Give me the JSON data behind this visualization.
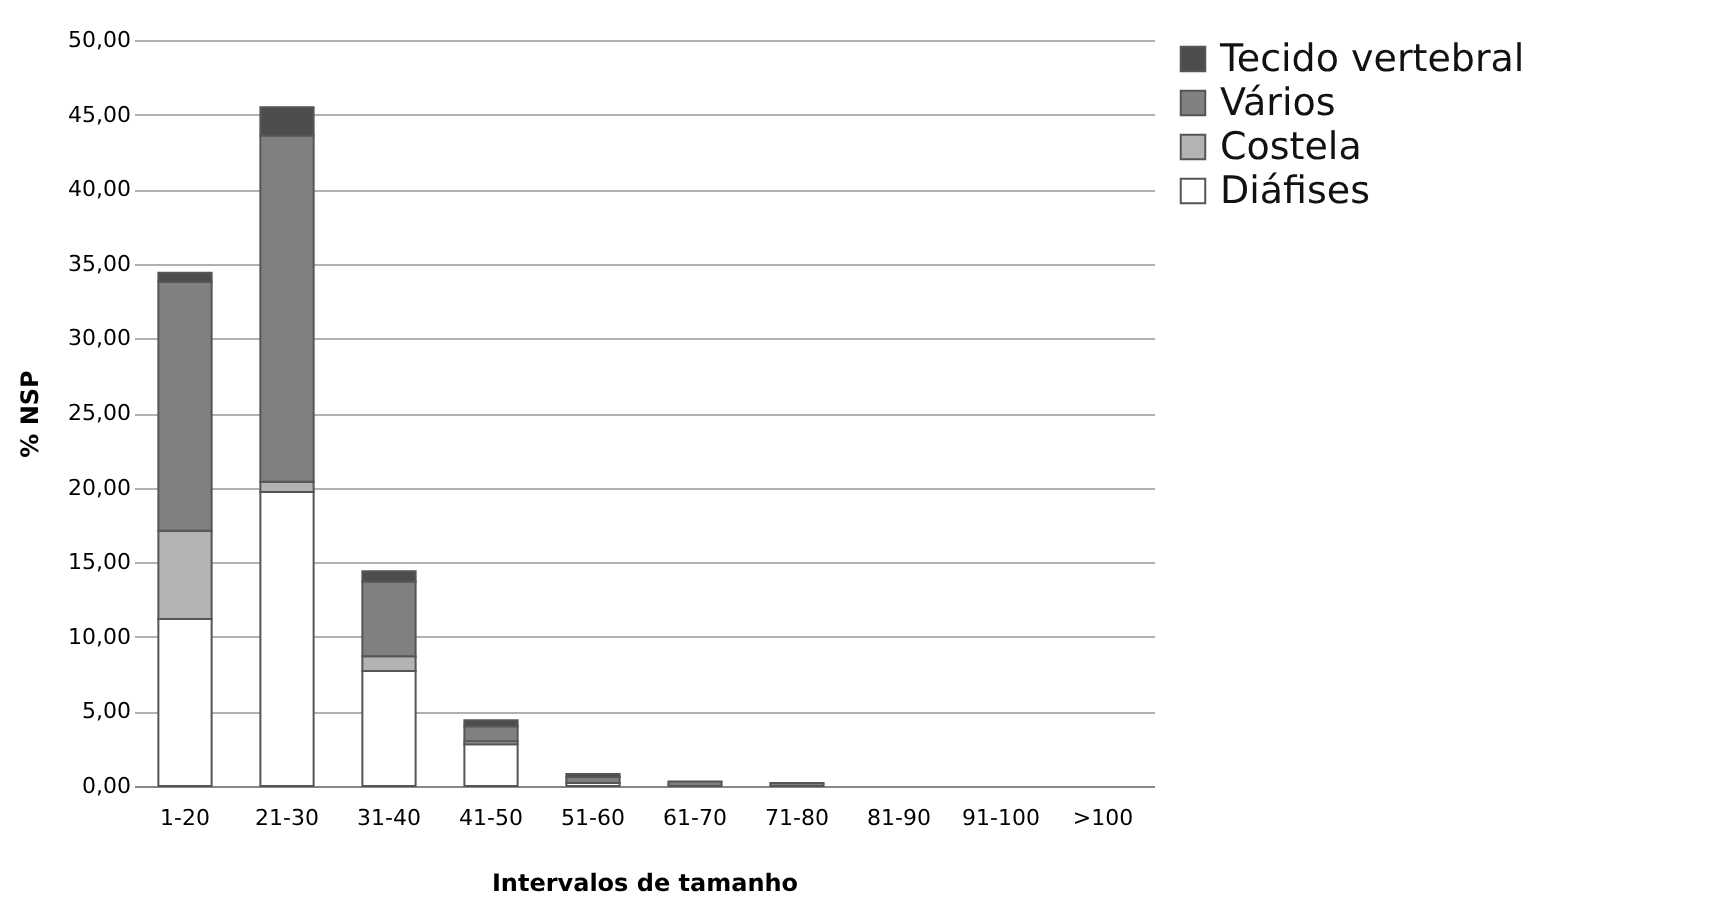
{
  "chart_data": {
    "type": "bar",
    "stacked": true,
    "xlabel": "Intervalos de tamanho",
    "ylabel": "% NSP",
    "categories": [
      "1-20",
      "21-30",
      "31-40",
      "41-50",
      "51-60",
      "61-70",
      "71-80",
      "81-90",
      "91-100",
      ">100"
    ],
    "series": [
      {
        "name": "Diáfises",
        "color": "#ffffff",
        "values": [
          11.2,
          19.7,
          7.7,
          2.8,
          0.2,
          0,
          0,
          0,
          0,
          0
        ]
      },
      {
        "name": "Costela",
        "color": "#b3b3b3",
        "values": [
          5.9,
          0.7,
          1.0,
          0.2,
          0,
          0,
          0,
          0,
          0,
          0
        ]
      },
      {
        "name": "Vários",
        "color": "#808080",
        "values": [
          16.7,
          23.2,
          5.0,
          1.0,
          0.4,
          0.3,
          0.2,
          0,
          0,
          0
        ]
      },
      {
        "name": "Tecido vertebral",
        "color": "#4d4d4d",
        "values": [
          0.6,
          1.9,
          0.7,
          0.4,
          0.2,
          0,
          0,
          0,
          0,
          0
        ]
      }
    ],
    "ylim": [
      0,
      50
    ],
    "yticks": [
      {
        "value": 0,
        "label": "0,00"
      },
      {
        "value": 5,
        "label": "5,00"
      },
      {
        "value": 10,
        "label": "10,00"
      },
      {
        "value": 15,
        "label": "15,00"
      },
      {
        "value": 20,
        "label": "20,00"
      },
      {
        "value": 25,
        "label": "25,00"
      },
      {
        "value": 30,
        "label": "30,00"
      },
      {
        "value": 35,
        "label": "35,00"
      },
      {
        "value": 40,
        "label": "40,00"
      },
      {
        "value": 45,
        "label": "45,00"
      },
      {
        "value": 50,
        "label": "50,00"
      }
    ],
    "grid": "y",
    "legend": "right"
  }
}
